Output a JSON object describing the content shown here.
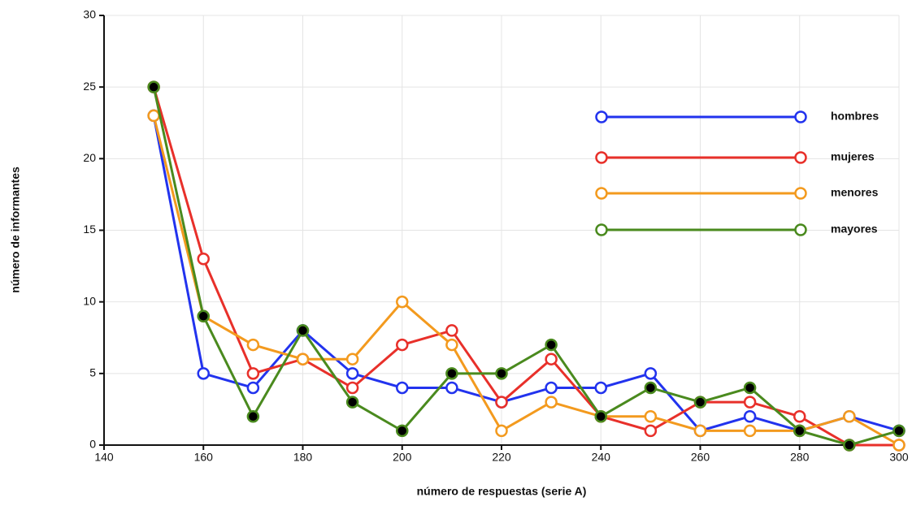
{
  "chart_data": {
    "type": "line",
    "x_label": "número de respuestas (serie A)",
    "y_label": "número de informantes",
    "x": [
      150,
      160,
      170,
      180,
      190,
      200,
      210,
      220,
      230,
      240,
      250,
      260,
      270,
      280,
      290,
      300
    ],
    "series": [
      {
        "name": "hombres",
        "color": "#2233ee",
        "values": [
          23,
          5,
          4,
          8,
          5,
          4,
          4,
          3,
          4,
          4,
          5,
          1,
          2,
          1,
          2,
          1
        ]
      },
      {
        "name": "mujeres",
        "color": "#e8302a",
        "values": [
          25,
          13,
          5,
          6,
          4,
          7,
          8,
          3,
          6,
          2,
          1,
          3,
          3,
          2,
          0,
          0
        ]
      },
      {
        "name": "menores",
        "color": "#f39a1e",
        "values": [
          23,
          9,
          7,
          6,
          6,
          10,
          7,
          1,
          3,
          2,
          2,
          1,
          1,
          1,
          2,
          0
        ]
      },
      {
        "name": "mayores",
        "color": "#4a8a1e",
        "values": [
          25,
          9,
          2,
          8,
          3,
          1,
          5,
          5,
          7,
          2,
          4,
          3,
          4,
          1,
          0,
          1
        ]
      }
    ],
    "xlim": [
      140,
      300
    ],
    "xticks": [
      140,
      160,
      180,
      200,
      220,
      240,
      260,
      280,
      300
    ],
    "ylim": [
      0,
      30
    ],
    "yticks": [
      0,
      5,
      10,
      15,
      20,
      25,
      30
    ],
    "grid": true
  }
}
